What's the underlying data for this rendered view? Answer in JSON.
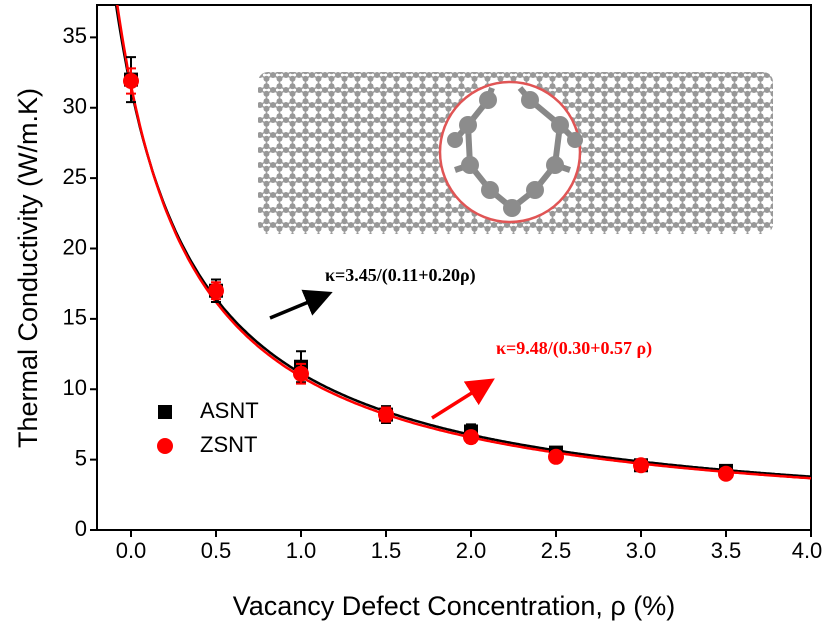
{
  "chart_data": {
    "type": "scatter",
    "x_label": "Vacancy Defect Concentration, ρ (%)",
    "y_label": "Thermal Conductivity (W/m.K)",
    "x": [
      0,
      0.5,
      1.0,
      1.5,
      2.0,
      2.5,
      3.0,
      3.5
    ],
    "series": [
      {
        "name": "ASNT",
        "color": "#000000",
        "marker": "square",
        "values": [
          32.0,
          17.0,
          11.6,
          8.2,
          7.0,
          5.5,
          4.6,
          4.2
        ],
        "errors": [
          1.6,
          0.8,
          1.1,
          0.6,
          0.5,
          0.3,
          0.3,
          0.2
        ]
      },
      {
        "name": "ZSNT",
        "color": "#ff0000",
        "marker": "circle",
        "values": [
          31.9,
          17.0,
          11.1,
          8.2,
          6.6,
          5.2,
          4.6,
          4.0
        ],
        "errors": [
          0.9,
          0.6,
          0.7,
          0.5,
          0.4,
          0.3,
          0.3,
          0.3
        ]
      }
    ],
    "fits": [
      {
        "color": "#000000",
        "a": 3.45,
        "b": 0.11,
        "c": 0.2,
        "label": "κ=3.45/(0.11+0.20ρ)"
      },
      {
        "color": "#ff0000",
        "a": 9.48,
        "b": 0.3,
        "c": 0.57,
        "label": "κ=9.48/(0.30+0.57 ρ)"
      }
    ],
    "xlim": [
      -0.2,
      4.0
    ],
    "ylim": [
      0,
      37.3
    ],
    "xticks": [
      {
        "value": 0,
        "label": "0.0"
      },
      {
        "value": 0.5,
        "label": "0.5"
      },
      {
        "value": 1,
        "label": "1.0"
      },
      {
        "value": 1.5,
        "label": "1.5"
      },
      {
        "value": 2,
        "label": "2.0"
      },
      {
        "value": 2.5,
        "label": "2.5"
      },
      {
        "value": 3,
        "label": "3.0"
      },
      {
        "value": 3.5,
        "label": "3.5"
      },
      {
        "value": 4,
        "label": "4.0"
      }
    ],
    "yticks": [
      0,
      5,
      10,
      15,
      20,
      25,
      30,
      35
    ],
    "legend": "lower-left",
    "grid": false
  }
}
